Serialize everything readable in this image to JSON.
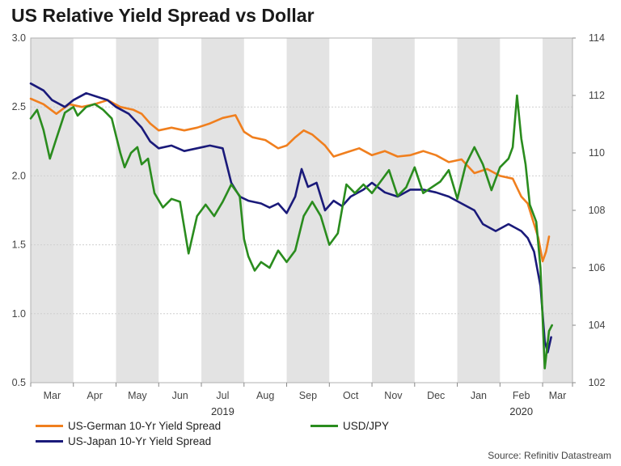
{
  "title": "US Relative Yield Spread vs Dollar",
  "source": "Source: Refinitiv Datastream",
  "chart_data": {
    "type": "line",
    "title": "US Relative Yield Spread vs Dollar",
    "months": [
      "Mar",
      "Apr",
      "May",
      "Jun",
      "Jul",
      "Aug",
      "Sep",
      "Oct",
      "Nov",
      "Dec",
      "Jan",
      "Feb",
      "Mar"
    ],
    "years": [
      "2019",
      "2020"
    ],
    "left_axis": {
      "ylim": [
        0.5,
        3.0
      ],
      "ticks": [
        "0.5",
        "1.0",
        "1.5",
        "2.0",
        "2.5",
        "3.0"
      ]
    },
    "right_axis": {
      "ylim": [
        102,
        114
      ],
      "ticks": [
        "102",
        "104",
        "106",
        "108",
        "110",
        "112",
        "114"
      ]
    },
    "x_range": [
      0,
      12.7
    ],
    "series": [
      {
        "name": "US-German 10-Yr Yield Spread",
        "axis": "left",
        "color": "#f07f1e",
        "points": [
          [
            0,
            2.56
          ],
          [
            0.3,
            2.52
          ],
          [
            0.6,
            2.45
          ],
          [
            0.9,
            2.52
          ],
          [
            1.2,
            2.5
          ],
          [
            1.5,
            2.52
          ],
          [
            1.8,
            2.55
          ],
          [
            2.1,
            2.5
          ],
          [
            2.4,
            2.48
          ],
          [
            2.6,
            2.45
          ],
          [
            2.8,
            2.38
          ],
          [
            3.0,
            2.33
          ],
          [
            3.3,
            2.35
          ],
          [
            3.6,
            2.33
          ],
          [
            3.9,
            2.35
          ],
          [
            4.2,
            2.38
          ],
          [
            4.5,
            2.42
          ],
          [
            4.8,
            2.44
          ],
          [
            5.0,
            2.32
          ],
          [
            5.2,
            2.28
          ],
          [
            5.5,
            2.26
          ],
          [
            5.8,
            2.2
          ],
          [
            6.0,
            2.22
          ],
          [
            6.2,
            2.28
          ],
          [
            6.4,
            2.33
          ],
          [
            6.6,
            2.3
          ],
          [
            6.9,
            2.22
          ],
          [
            7.1,
            2.14
          ],
          [
            7.4,
            2.17
          ],
          [
            7.7,
            2.2
          ],
          [
            8.0,
            2.15
          ],
          [
            8.3,
            2.18
          ],
          [
            8.6,
            2.14
          ],
          [
            8.9,
            2.15
          ],
          [
            9.2,
            2.18
          ],
          [
            9.5,
            2.15
          ],
          [
            9.8,
            2.1
          ],
          [
            10.1,
            2.12
          ],
          [
            10.4,
            2.02
          ],
          [
            10.7,
            2.05
          ],
          [
            11.0,
            2.0
          ],
          [
            11.3,
            1.98
          ],
          [
            11.5,
            1.85
          ],
          [
            11.65,
            1.8
          ],
          [
            11.8,
            1.65
          ],
          [
            11.9,
            1.55
          ],
          [
            12.0,
            1.38
          ],
          [
            12.08,
            1.45
          ],
          [
            12.15,
            1.56
          ]
        ]
      },
      {
        "name": "US-Japan 10-Yr Yield Spread",
        "axis": "left",
        "color": "#1a1a7a",
        "points": [
          [
            0,
            2.67
          ],
          [
            0.3,
            2.62
          ],
          [
            0.5,
            2.55
          ],
          [
            0.8,
            2.5
          ],
          [
            1.0,
            2.55
          ],
          [
            1.3,
            2.6
          ],
          [
            1.5,
            2.58
          ],
          [
            1.8,
            2.55
          ],
          [
            2.0,
            2.5
          ],
          [
            2.3,
            2.45
          ],
          [
            2.6,
            2.35
          ],
          [
            2.8,
            2.25
          ],
          [
            3.0,
            2.2
          ],
          [
            3.3,
            2.22
          ],
          [
            3.6,
            2.18
          ],
          [
            3.9,
            2.2
          ],
          [
            4.2,
            2.22
          ],
          [
            4.5,
            2.2
          ],
          [
            4.7,
            1.95
          ],
          [
            4.9,
            1.85
          ],
          [
            5.1,
            1.82
          ],
          [
            5.4,
            1.8
          ],
          [
            5.6,
            1.77
          ],
          [
            5.8,
            1.8
          ],
          [
            6.0,
            1.73
          ],
          [
            6.2,
            1.85
          ],
          [
            6.35,
            2.05
          ],
          [
            6.5,
            1.92
          ],
          [
            6.7,
            1.95
          ],
          [
            6.9,
            1.75
          ],
          [
            7.1,
            1.82
          ],
          [
            7.3,
            1.78
          ],
          [
            7.5,
            1.85
          ],
          [
            7.8,
            1.9
          ],
          [
            8.0,
            1.95
          ],
          [
            8.3,
            1.88
          ],
          [
            8.6,
            1.85
          ],
          [
            8.9,
            1.9
          ],
          [
            9.2,
            1.9
          ],
          [
            9.5,
            1.88
          ],
          [
            9.8,
            1.85
          ],
          [
            10.1,
            1.8
          ],
          [
            10.4,
            1.75
          ],
          [
            10.6,
            1.65
          ],
          [
            10.9,
            1.6
          ],
          [
            11.2,
            1.65
          ],
          [
            11.5,
            1.6
          ],
          [
            11.65,
            1.55
          ],
          [
            11.8,
            1.45
          ],
          [
            11.95,
            1.2
          ],
          [
            12.05,
            0.8
          ],
          [
            12.12,
            0.72
          ],
          [
            12.2,
            0.83
          ]
        ]
      },
      {
        "name": "USD/JPY",
        "axis": "right",
        "color": "#2a8c1e",
        "points": [
          [
            0,
            111.2
          ],
          [
            0.15,
            111.5
          ],
          [
            0.3,
            110.8
          ],
          [
            0.45,
            109.8
          ],
          [
            0.6,
            110.5
          ],
          [
            0.8,
            111.4
          ],
          [
            1.0,
            111.6
          ],
          [
            1.1,
            111.3
          ],
          [
            1.3,
            111.6
          ],
          [
            1.5,
            111.7
          ],
          [
            1.7,
            111.5
          ],
          [
            1.9,
            111.2
          ],
          [
            2.1,
            110.0
          ],
          [
            2.2,
            109.5
          ],
          [
            2.35,
            110.0
          ],
          [
            2.5,
            110.2
          ],
          [
            2.6,
            109.6
          ],
          [
            2.75,
            109.8
          ],
          [
            2.9,
            108.6
          ],
          [
            3.1,
            108.1
          ],
          [
            3.3,
            108.4
          ],
          [
            3.5,
            108.3
          ],
          [
            3.7,
            106.5
          ],
          [
            3.9,
            107.8
          ],
          [
            4.1,
            108.2
          ],
          [
            4.3,
            107.8
          ],
          [
            4.5,
            108.3
          ],
          [
            4.7,
            108.9
          ],
          [
            4.9,
            108.5
          ],
          [
            5.0,
            107.0
          ],
          [
            5.1,
            106.4
          ],
          [
            5.25,
            105.9
          ],
          [
            5.4,
            106.2
          ],
          [
            5.6,
            106.0
          ],
          [
            5.8,
            106.6
          ],
          [
            6.0,
            106.2
          ],
          [
            6.2,
            106.6
          ],
          [
            6.4,
            107.8
          ],
          [
            6.6,
            108.3
          ],
          [
            6.8,
            107.8
          ],
          [
            7.0,
            106.8
          ],
          [
            7.2,
            107.2
          ],
          [
            7.4,
            108.9
          ],
          [
            7.6,
            108.6
          ],
          [
            7.8,
            108.9
          ],
          [
            8.0,
            108.6
          ],
          [
            8.2,
            109.0
          ],
          [
            8.4,
            109.4
          ],
          [
            8.6,
            108.5
          ],
          [
            8.8,
            108.8
          ],
          [
            9.0,
            109.5
          ],
          [
            9.2,
            108.6
          ],
          [
            9.4,
            108.8
          ],
          [
            9.6,
            109.0
          ],
          [
            9.8,
            109.4
          ],
          [
            10.0,
            108.4
          ],
          [
            10.2,
            109.6
          ],
          [
            10.4,
            110.2
          ],
          [
            10.6,
            109.6
          ],
          [
            10.8,
            108.7
          ],
          [
            11.0,
            109.5
          ],
          [
            11.2,
            109.8
          ],
          [
            11.3,
            110.2
          ],
          [
            11.4,
            112.0
          ],
          [
            11.5,
            110.5
          ],
          [
            11.6,
            109.6
          ],
          [
            11.7,
            108.2
          ],
          [
            11.85,
            107.6
          ],
          [
            11.95,
            106.0
          ],
          [
            12.05,
            102.5
          ],
          [
            12.15,
            103.8
          ],
          [
            12.22,
            104.0
          ]
        ]
      }
    ],
    "x_label": "",
    "y_label": "",
    "legend_position": "bottom"
  }
}
